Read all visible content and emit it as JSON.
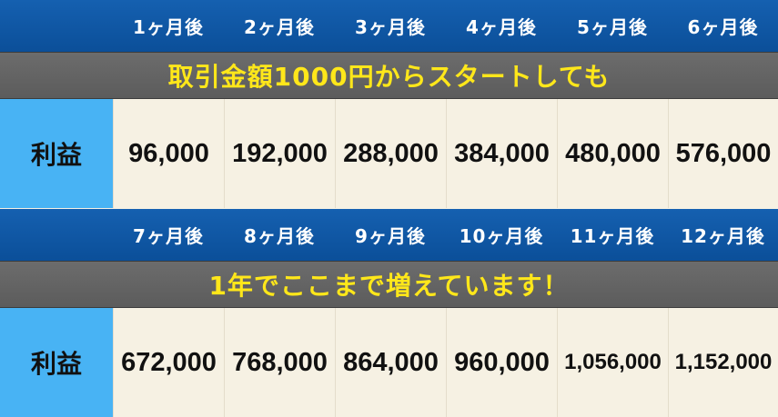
{
  "top_section": {
    "headers": [
      "1ヶ月後",
      "2ヶ月後",
      "3ヶ月後",
      "4ヶ月後",
      "5ヶ月後",
      "6ヶ月後"
    ],
    "banner": "取引金額1000円からスタートしても",
    "row_label": "利益",
    "values": [
      "96,000",
      "192,000",
      "288,000",
      "384,000",
      "480,000",
      "576,000"
    ]
  },
  "bottom_section": {
    "headers": [
      "7ヶ月後",
      "8ヶ月後",
      "9ヶ月後",
      "10ヶ月後",
      "11ヶ月後",
      "12ヶ月後"
    ],
    "banner": "1年でここまで増えています！",
    "row_label": "利益",
    "values": [
      "672,000",
      "768,000",
      "864,000",
      "960,000",
      "1,056,000",
      "1,152,000"
    ]
  },
  "colors": {
    "header_blue": "#0b4f99",
    "banner_gray": "#5c5c5c",
    "banner_text": "#ffe71a",
    "label_blue": "#48b3f4",
    "cell_bg": "#f6f1e3"
  }
}
